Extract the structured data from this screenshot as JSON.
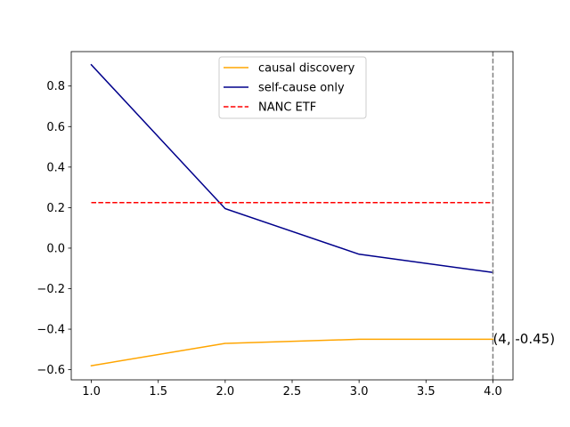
{
  "chart_data": {
    "type": "line",
    "title": "",
    "xlabel": "",
    "ylabel": "",
    "xlim": [
      0.85,
      4.15
    ],
    "ylim": [
      -0.65,
      0.97
    ],
    "x_ticks": [
      1.0,
      1.5,
      2.0,
      2.5,
      3.0,
      3.5,
      4.0
    ],
    "x_tick_labels": [
      "1.0",
      "1.5",
      "2.0",
      "2.5",
      "3.0",
      "3.5",
      "4.0"
    ],
    "y_ticks": [
      -0.6,
      -0.4,
      -0.2,
      0.0,
      0.2,
      0.4,
      0.6,
      0.8
    ],
    "y_tick_labels": [
      "−0.6",
      "−0.4",
      "−0.2",
      "0.0",
      "0.2",
      "0.4",
      "0.6",
      "0.8"
    ],
    "grid": false,
    "legend_position": "top-center",
    "series": [
      {
        "name": "causal discovery",
        "color": "#ffa500",
        "style": "solid",
        "x": [
          1,
          2,
          3,
          4
        ],
        "y": [
          -0.58,
          -0.47,
          -0.45,
          -0.45
        ]
      },
      {
        "name": "self-cause only",
        "color": "#00008b",
        "style": "solid",
        "x": [
          1,
          2,
          3,
          4
        ],
        "y": [
          0.905,
          0.195,
          -0.03,
          -0.12
        ]
      },
      {
        "name": "NANC ETF",
        "color": "#ff0000",
        "style": "dashed",
        "x": [
          1,
          4
        ],
        "y": [
          0.225,
          0.225
        ]
      }
    ],
    "vlines": [
      {
        "x": 4,
        "color": "#808080",
        "style": "dashed"
      }
    ],
    "annotations": [
      {
        "text": "(4, -0.45)",
        "x": 4,
        "y": -0.45
      }
    ]
  }
}
